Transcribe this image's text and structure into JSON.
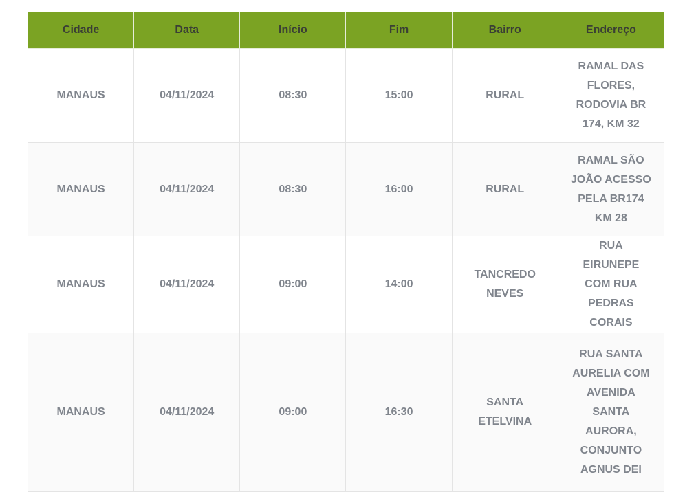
{
  "table": {
    "headers": [
      "Cidade",
      "Data",
      "Início",
      "Fim",
      "Bairro",
      "Endereço"
    ],
    "rows": [
      [
        "MANAUS",
        "04/11/2024",
        "08:30",
        "15:00",
        "RURAL",
        "RAMAL DAS FLORES, RODOVIA BR 174, KM 32"
      ],
      [
        "MANAUS",
        "04/11/2024",
        "08:30",
        "16:00",
        "RURAL",
        "RAMAL SÃO JOÃO ACESSO PELA BR174 KM 28"
      ],
      [
        "MANAUS",
        "04/11/2024",
        "09:00",
        "14:00",
        "TANCREDO NEVES",
        "RUA EIRUNEPE COM RUA PEDRAS CORAIS"
      ],
      [
        "MANAUS",
        "04/11/2024",
        "09:00",
        "16:30",
        "SANTA ETELVINA",
        "RUA SANTA AURELIA COM AVENIDA SANTA AURORA, CONJUNTO AGNUS DEI"
      ]
    ]
  },
  "colors": {
    "header_bg": "#7ba323",
    "header_text": "#3a3f35",
    "cell_text": "#80858d"
  }
}
